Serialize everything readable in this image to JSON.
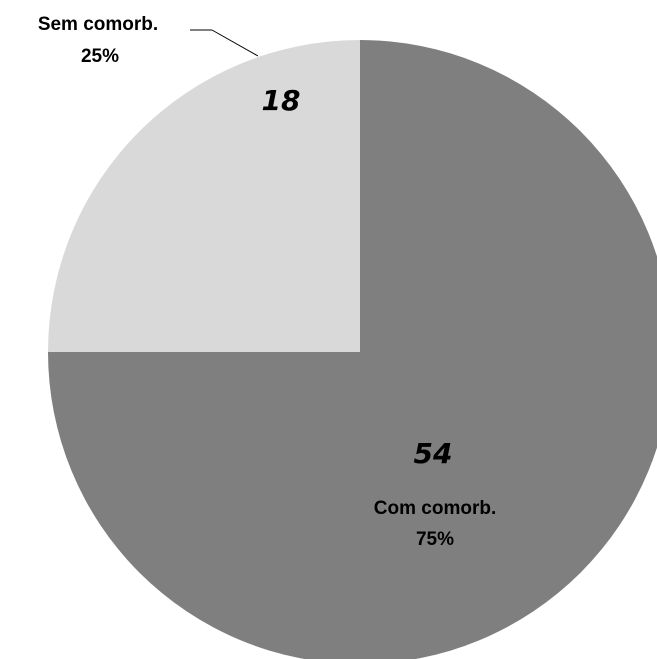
{
  "chart_data": {
    "type": "pie",
    "slices": [
      {
        "name": "Com comorb.",
        "value": 54,
        "percent": "75%",
        "color": "#7f7f7f"
      },
      {
        "name": "Sem comorb.",
        "value": 18,
        "percent": "25%",
        "color": "#d9d9d9"
      }
    ],
    "legend": "none"
  }
}
